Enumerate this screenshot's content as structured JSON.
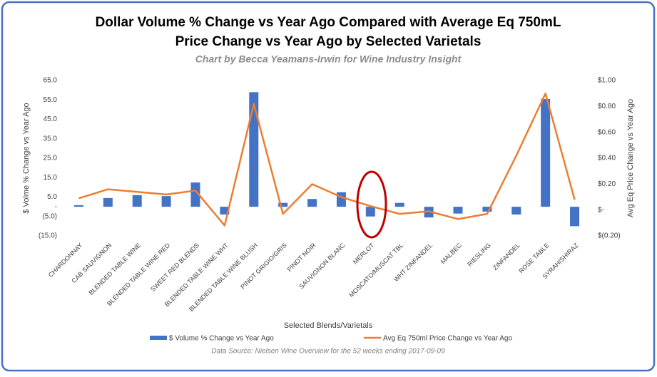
{
  "chart_data": {
    "type": "bar-line",
    "title": "Dollar Volume % Change vs Year Ago Compared with Average Eq 750mL",
    "title_line2": "Price Change vs Year Ago by Selected Varietals",
    "subtitle": "Chart by Becca Yeamans-Irwin for Wine Industry Insight",
    "x_label": "Selected Blends/Varietals",
    "y_label": "$ Volme % Change vs Year Ago",
    "y2_label": "Avg Eq Price Change vs Year Ago",
    "source": "Data Source: Nielsen Wine Overview for the 52 weeks ending 2017-09-09",
    "categories": [
      "CHARDONNAY",
      "CAB SAUVIGNON",
      "BLENDED TABLE WINE",
      "BLENDED TABLE WINE RED",
      "SWEET RED BLENDS",
      "BLENDED TABLE WINE WHT",
      "BLENDED TABLE WINE BLUSH",
      "PINOT GRIGIO/GRIS",
      "PINOT NOIR",
      "SAUVIGNON BLANC",
      "MERLOT",
      "MOSCATO/MUSCAT TBL",
      "WHT ZINFANDEL",
      "MALBEC",
      "RIESLING",
      "ZINFANDEL",
      "ROSE TABLE",
      "SYRAH/SHIRAZ"
    ],
    "series": [
      {
        "name": "$ Volume % Change vs Year Ago",
        "type": "bar",
        "color": "#4472c4",
        "values": [
          0.8,
          4.5,
          6,
          5.5,
          12.5,
          -4,
          59,
          2,
          4,
          7.5,
          -5,
          2,
          -5.5,
          -3.5,
          -2.5,
          -4,
          55.5,
          -10
        ]
      },
      {
        "name": "Avg Eq 750ml Price Change vs Year Ago",
        "type": "line",
        "axis": "y2",
        "color": "#ed7d31",
        "values": [
          0.09,
          0.16,
          0.14,
          0.12,
          0.15,
          -0.12,
          0.82,
          -0.03,
          0.2,
          0.1,
          0.03,
          -0.03,
          -0.01,
          -0.07,
          -0.03,
          0.42,
          0.9,
          0.08
        ]
      }
    ],
    "ylim": [
      -15,
      65
    ],
    "yticks": [
      {
        "value": 65,
        "label": "65.0"
      },
      {
        "value": 55,
        "label": "55.0"
      },
      {
        "value": 45,
        "label": "45.0"
      },
      {
        "value": 35,
        "label": "35.0"
      },
      {
        "value": 25,
        "label": "25.0"
      },
      {
        "value": 15,
        "label": "15.0"
      },
      {
        "value": 5,
        "label": "5.0"
      },
      {
        "value": 0,
        "label": "-"
      },
      {
        "value": -5,
        "label": "(5.0)"
      },
      {
        "value": -15,
        "label": "(15.0)"
      }
    ],
    "y2lim": [
      -0.2,
      1.0
    ],
    "y2ticks": [
      {
        "value": 1.0,
        "label": "$1.00"
      },
      {
        "value": 0.8,
        "label": "$0.80"
      },
      {
        "value": 0.6,
        "label": "$0.60"
      },
      {
        "value": 0.4,
        "label": "$0.40"
      },
      {
        "value": 0.2,
        "label": "$0.20"
      },
      {
        "value": 0,
        "label": "$-"
      },
      {
        "value": -0.2,
        "label": "$(0.20)"
      }
    ],
    "grid": false
  }
}
